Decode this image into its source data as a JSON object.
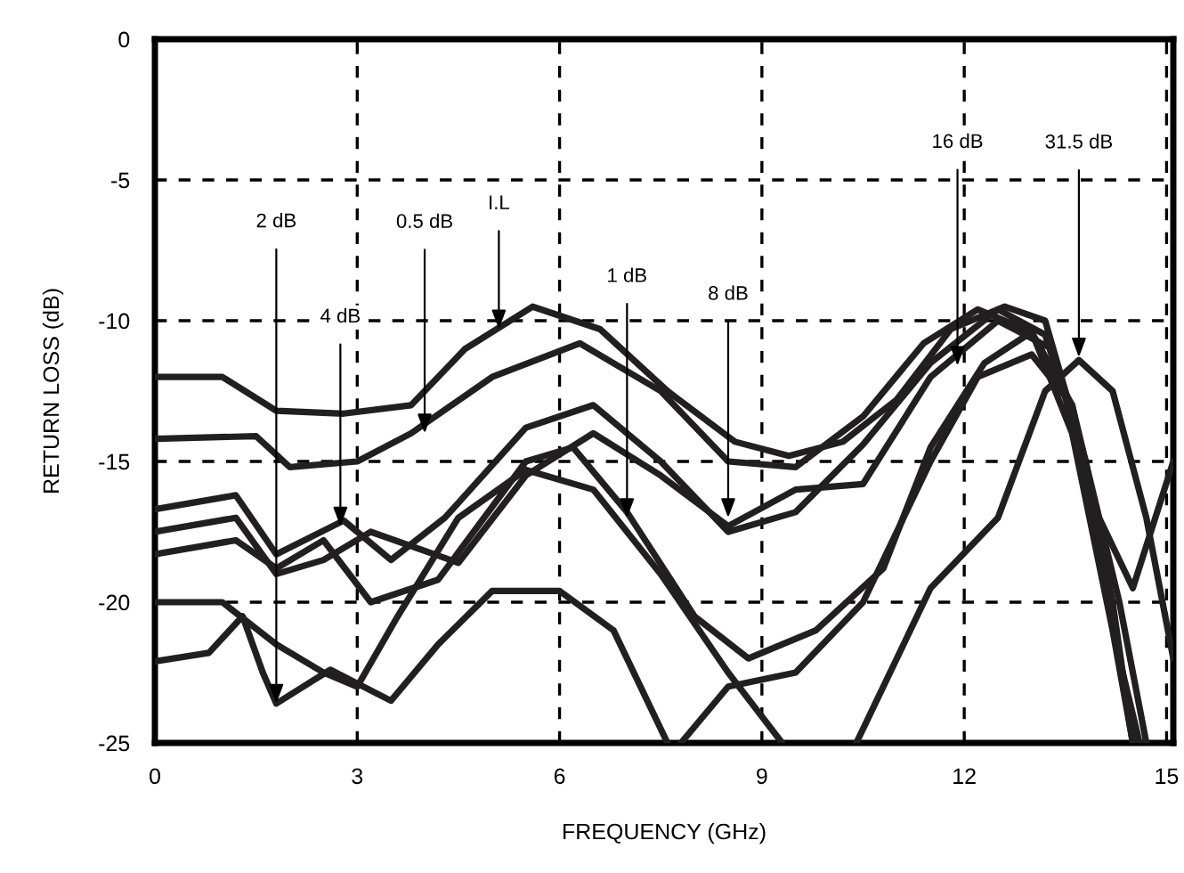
{
  "chart_data": {
    "type": "line",
    "xlabel": "FREQUENCY (GHz)",
    "ylabel": "RETURN LOSS (dB)",
    "xlim": [
      0,
      15.1
    ],
    "ylim": [
      -25,
      0
    ],
    "xticks": [
      0,
      3,
      6,
      9,
      12,
      15
    ],
    "yticks": [
      -25,
      -20,
      -15,
      -10,
      -5,
      0
    ],
    "grid": true,
    "line_style": "solid",
    "marker": "none",
    "series": [
      {
        "color": "#231f20",
        "x": [
          0,
          1,
          1.8,
          2.8,
          3.8,
          4.6,
          5.6,
          6.6,
          7.6,
          8.6,
          9.4,
          10.2,
          11,
          11.8,
          12.6,
          13.2,
          13.8,
          14.3,
          14.6
        ],
        "values": [
          -12.0,
          -12.0,
          -13.2,
          -13.3,
          -13.0,
          -11.0,
          -9.5,
          -10.3,
          -12.5,
          -14.3,
          -14.8,
          -14.3,
          -12.8,
          -10.3,
          -9.5,
          -10.0,
          -15,
          -22,
          -25
        ]
      },
      {
        "color": "#231f20",
        "x": [
          0,
          1.5,
          2.0,
          3,
          3.8,
          5,
          6.3,
          7.5,
          8.5,
          9.5,
          10.5,
          11.4,
          12.2,
          13,
          13.6,
          14.2,
          14.5
        ],
        "values": [
          -14.2,
          -14.1,
          -15.2,
          -15.0,
          -14.0,
          -12.0,
          -10.8,
          -12.5,
          -15.0,
          -15.2,
          -13.4,
          -10.8,
          -9.6,
          -10.4,
          -14,
          -21,
          -25
        ]
      },
      {
        "color": "#231f20",
        "x": [
          0,
          1.2,
          1.8,
          2.8,
          3.5,
          4.3,
          5.5,
          6.5,
          7.5,
          8.5,
          9.5,
          10.5,
          11.5,
          12.5,
          13.2,
          13.8,
          14.3,
          14.5
        ],
        "values": [
          -16.7,
          -16.2,
          -18.3,
          -17.1,
          -18.5,
          -17.0,
          -13.8,
          -13.0,
          -15.0,
          -17.5,
          -16.8,
          -14.4,
          -11.5,
          -9.6,
          -10.5,
          -15,
          -22,
          -25
        ]
      },
      {
        "color": "#231f20",
        "x": [
          0,
          1.2,
          1.8,
          2.5,
          3.2,
          4.5,
          5.5,
          6.5,
          7.5,
          8.5,
          9.5,
          10.5,
          11.5,
          12.5,
          13.3,
          14,
          14.5,
          15.1
        ],
        "values": [
          -17.5,
          -17.0,
          -19.0,
          -18.5,
          -17.5,
          -18.6,
          -15.5,
          -14.0,
          -15.5,
          -17.3,
          -16.0,
          -15.8,
          -12.0,
          -10.0,
          -11.0,
          -17,
          -19.5,
          -15
        ]
      },
      {
        "color": "#231f20",
        "x": [
          0,
          1.2,
          1.8,
          2.5,
          3.2,
          4.2,
          5.5,
          6.2,
          7.0,
          8,
          8.8,
          9.8,
          10.8,
          11.5,
          12.3,
          13,
          13.6,
          14.3,
          14.7
        ],
        "values": [
          -18.3,
          -17.8,
          -18.8,
          -17.8,
          -20.0,
          -19.2,
          -15.0,
          -14.5,
          -16.8,
          -20.5,
          -22.0,
          -21.0,
          -18.8,
          -14.5,
          -11.5,
          -10.4,
          -13,
          -20,
          -25
        ]
      },
      {
        "color": "#231f20",
        "x": [
          0,
          1,
          1.8,
          2.5,
          3.0,
          3.6,
          4.5,
          5.5,
          6.5,
          7.5,
          8.5,
          9.3
        ],
        "values": [
          -20.0,
          -20.0,
          -21.5,
          -22.5,
          -23.0,
          -20.5,
          -17.0,
          -15.3,
          -16.0,
          -19.0,
          -22.5,
          -25
        ]
      },
      {
        "color": "#231f20",
        "x": [
          0,
          0.8,
          1.3,
          1.6,
          1.8,
          2.6,
          3.5,
          4.2,
          5,
          6,
          6.8,
          7.6
        ],
        "values": [
          -22.1,
          -21.8,
          -20.5,
          -22.5,
          -23.6,
          -22.4,
          -23.5,
          -21.5,
          -19.6,
          -19.6,
          -21.0,
          -25
        ]
      },
      {
        "color": "#231f20",
        "x": [
          10.4,
          11,
          11.5,
          12.5,
          13.2,
          13.7,
          14.2,
          14.7,
          15.1
        ],
        "values": [
          -25,
          -22,
          -19.5,
          -17,
          -12.5,
          -11.4,
          -12.5,
          -17,
          -22
        ]
      },
      {
        "color": "#231f20",
        "x": [
          7.8,
          8.5,
          9.5,
          10.5,
          11.5,
          12.2,
          13,
          13.6,
          14.2,
          14.5
        ],
        "values": [
          -25,
          -23,
          -22.5,
          -20,
          -15,
          -12,
          -11.2,
          -13,
          -20,
          -25
        ]
      }
    ],
    "annotations": [
      {
        "text": "2 dB",
        "x": 1.8,
        "y": -23.6
      },
      {
        "text": "0.5 dB",
        "x": 4.0,
        "y": -14.0
      },
      {
        "text": "I.L",
        "x": 5.1,
        "y": -10.3
      },
      {
        "text": "4 dB",
        "x": 2.75,
        "y": -17.3
      },
      {
        "text": "1 dB",
        "x": 7.0,
        "y": -17.0
      },
      {
        "text": "8 dB",
        "x": 8.5,
        "y": -17.0
      },
      {
        "text": "16 dB",
        "x": 11.9,
        "y": -11.6
      },
      {
        "text": "31.5 dB",
        "x": 13.7,
        "y": -11.3
      }
    ]
  }
}
